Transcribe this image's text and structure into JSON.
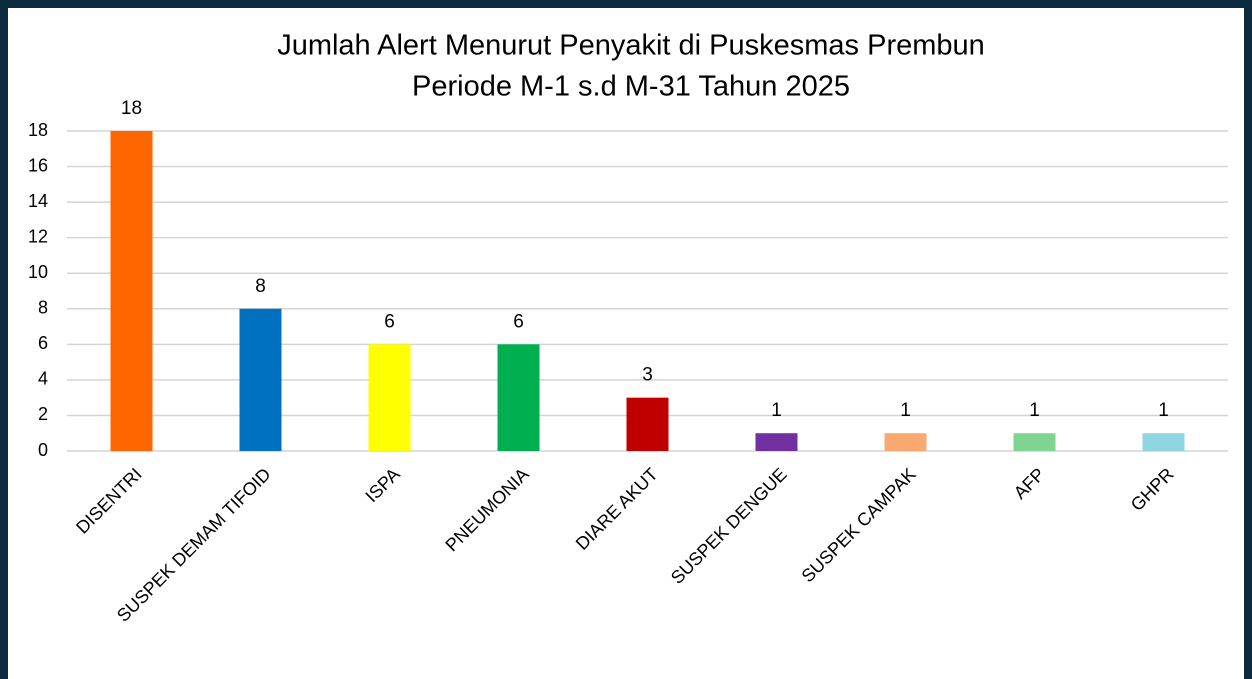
{
  "chart_data": {
    "type": "bar",
    "title": "Jumlah Alert Menurut Penyakit di Puskesmas Prembun",
    "subtitle": "Periode M-1 s.d M-31 Tahun 2025",
    "categories": [
      "DISENTRI",
      "SUSPEK DEMAM TIFOID",
      "ISPA",
      "PNEUMONIA",
      "DIARE AKUT",
      "SUSPEK DENGUE",
      "SUSPEK CAMPAK",
      "AFP",
      "GHPR"
    ],
    "values": [
      18,
      8,
      6,
      6,
      3,
      1,
      1,
      1,
      1
    ],
    "colors": [
      "#ff6600",
      "#0070c0",
      "#ffff00",
      "#00b050",
      "#c00000",
      "#7030a0",
      "#f9a870",
      "#7fd58f",
      "#8fd6e0"
    ],
    "ylim": [
      0,
      18
    ],
    "yticks": [
      0,
      2,
      4,
      6,
      8,
      10,
      12,
      14,
      16,
      18
    ],
    "grid": true
  }
}
